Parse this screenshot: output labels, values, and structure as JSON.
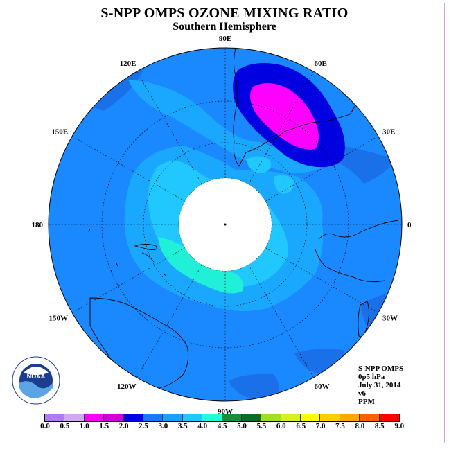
{
  "title": "S-NPP OMPS OZONE MIXING RATIO",
  "subtitle": "Southern Hemisphere",
  "projection": "south-polar-stereographic",
  "longitude_labels": [
    {
      "text": "90W",
      "lon_deg": -90
    },
    {
      "text": "60W",
      "lon_deg": -60
    },
    {
      "text": "30W",
      "lon_deg": -30
    },
    {
      "text": "0",
      "lon_deg": 0
    },
    {
      "text": "30E",
      "lon_deg": 30
    },
    {
      "text": "60E",
      "lon_deg": 60
    },
    {
      "text": "90E",
      "lon_deg": 90
    },
    {
      "text": "120E",
      "lon_deg": 120
    },
    {
      "text": "150E",
      "lon_deg": 150
    },
    {
      "text": "180",
      "lon_deg": 180
    },
    {
      "text": "150W",
      "lon_deg": -150
    },
    {
      "text": "120W",
      "lon_deg": -120
    }
  ],
  "info": {
    "instrument": "S-NPP OMPS",
    "level": "0p5 hPa",
    "date": "July 31, 2014",
    "version": "v6",
    "units": "PPM"
  },
  "logo": {
    "text": "NOAA",
    "agency": "NATIONAL OCEANIC AND ATMOSPHERIC ADMINISTRATION",
    "department": "U.S. DEPARTMENT OF COMMERCE"
  },
  "colorbar": {
    "ticks": [
      "0.0",
      "0.5",
      "1.0",
      "1.5",
      "2.0",
      "2.5",
      "3.0",
      "3.5",
      "4.0",
      "4.5",
      "5.0",
      "5.5",
      "6.0",
      "6.5",
      "7.0",
      "7.5",
      "8.0",
      "8.5",
      "9.0"
    ],
    "colors": [
      "#b07cf0",
      "#d4a8f0",
      "#ff00ff",
      "#d000d8",
      "#0000e0",
      "#1a78ff",
      "#1aa0ff",
      "#20c8ff",
      "#20ffd8",
      "#1a8c3a",
      "#106a24",
      "#a0e020",
      "#d8f020",
      "#ffff00",
      "#ffd000",
      "#ffa800",
      "#ff6000",
      "#ff0000",
      "#804a36"
    ]
  },
  "map_colors": {
    "base": "#1a88ff",
    "light": "#1aa8ff",
    "lighter": "#20c8ff",
    "teal": "#20f0d8",
    "darker": "#1a70e8",
    "dark_blue": "#0000e0",
    "magenta": "#ff00ff",
    "pole_hole": "#ffffff"
  }
}
